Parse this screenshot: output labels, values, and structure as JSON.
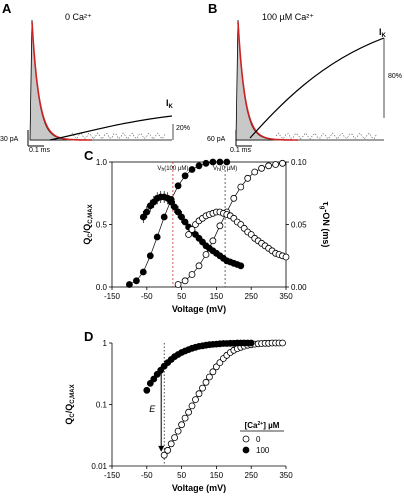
{
  "panels": {
    "A": {
      "letter": "A",
      "condition": "0 Ca²⁺",
      "ik": "I",
      "ik_sub": "K",
      "scale_current": "30 pA",
      "scale_time": "0.1 ms",
      "scale_pct": "20%",
      "tail_end_fraction": 0.2
    },
    "B": {
      "letter": "B",
      "condition": "100 µM Ca²⁺",
      "ik": "I",
      "ik_sub": "K",
      "scale_current": "60 pA",
      "scale_time": "0.1 ms",
      "scale_pct": "80%",
      "tail_end_fraction": 0.8
    },
    "C": {
      "letter": "C"
    },
    "D": {
      "letter": "D"
    }
  },
  "chart_data": [
    {
      "id": "C",
      "type": "scatter",
      "xlabel": "Voltage (mV)",
      "ylabel": "Q",
      "ylabel_sub": "C",
      "ylabel_mid": "/Q",
      "ylabel_sub2": "C,MAX",
      "y2label": "τ",
      "y2label_sub": "g",
      "y2label_rest": "ON",
      "y2label_unit": "(ms)",
      "xlim": [
        -150,
        350
      ],
      "ylim": [
        0,
        1
      ],
      "y2lim": [
        0,
        0.1
      ],
      "x_ticks": [
        -150,
        -50,
        50,
        150,
        250,
        350
      ],
      "y_ticks": [
        "0.0",
        "0.5",
        "1.0"
      ],
      "y_tick_values": [
        0,
        0.5,
        1
      ],
      "y2_ticks": [
        "0.00",
        "0.05",
        "0.10"
      ],
      "y2_tick_values": [
        0,
        0.05,
        0.1
      ],
      "annotations": [
        {
          "text": "V",
          "sub": "h",
          "rest": "(100 µM)",
          "x": 25,
          "color": "#d62728"
        },
        {
          "text": "V",
          "sub": "h",
          "rest": "(0 µM)",
          "x": 175,
          "color": "#444444"
        }
      ],
      "series": [
        {
          "group": "Q100",
          "marker": "filled",
          "x": [
            -100,
            -80,
            -60,
            -40,
            -20,
            0,
            20,
            40,
            60,
            80,
            100,
            120,
            140,
            160,
            180
          ],
          "y": [
            0.02,
            0.05,
            0.12,
            0.25,
            0.4,
            0.56,
            0.7,
            0.81,
            0.89,
            0.94,
            0.97,
            0.99,
            1.0,
            1.0,
            1.0
          ]
        },
        {
          "group": "Q0",
          "marker": "open",
          "x": [
            40,
            60,
            80,
            100,
            120,
            140,
            160,
            180,
            200,
            220,
            240,
            260,
            280,
            300,
            320,
            340
          ],
          "y": [
            0.02,
            0.05,
            0.1,
            0.17,
            0.26,
            0.37,
            0.49,
            0.6,
            0.71,
            0.8,
            0.87,
            0.92,
            0.95,
            0.97,
            0.98,
            0.99
          ]
        },
        {
          "group": "Tau100",
          "marker": "filled",
          "axis": "y2",
          "x": [
            -60,
            -50,
            -40,
            -30,
            -20,
            -10,
            0,
            10,
            20,
            30,
            40,
            50,
            60,
            70,
            80,
            90,
            100,
            110,
            120,
            130,
            140,
            150,
            160,
            170,
            180,
            190,
            200,
            210,
            220
          ],
          "y": [
            0.056,
            0.06,
            0.065,
            0.068,
            0.071,
            0.072,
            0.072,
            0.071,
            0.068,
            0.064,
            0.06,
            0.056,
            0.052,
            0.048,
            0.045,
            0.042,
            0.039,
            0.036,
            0.033,
            0.031,
            0.029,
            0.027,
            0.025,
            0.023,
            0.021,
            0.02,
            0.019,
            0.018,
            0.017
          ]
        },
        {
          "group": "Tau0",
          "marker": "open",
          "axis": "y2",
          "x": [
            70,
            80,
            90,
            100,
            110,
            120,
            130,
            140,
            150,
            160,
            170,
            180,
            190,
            200,
            210,
            220,
            230,
            240,
            250,
            260,
            270,
            280,
            290,
            300,
            310,
            320,
            330,
            340,
            350
          ],
          "y": [
            0.042,
            0.046,
            0.05,
            0.053,
            0.055,
            0.057,
            0.058,
            0.059,
            0.06,
            0.06,
            0.059,
            0.058,
            0.057,
            0.055,
            0.052,
            0.05,
            0.047,
            0.044,
            0.042,
            0.039,
            0.037,
            0.035,
            0.033,
            0.031,
            0.029,
            0.027,
            0.026,
            0.025,
            0.024
          ]
        }
      ]
    },
    {
      "id": "D",
      "type": "scatter",
      "log_y": true,
      "xlabel": "Voltage (mV)",
      "ylabel": "Q",
      "ylabel_sub": "C",
      "ylabel_mid": "/Q",
      "ylabel_sub2": "C,MAX",
      "xlim": [
        -150,
        350
      ],
      "ylim": [
        0.01,
        1
      ],
      "x_ticks": [
        -150,
        -50,
        50,
        150,
        250,
        350
      ],
      "y_ticks": [
        "0.01",
        "0.1",
        "1"
      ],
      "y_tick_values": [
        0.01,
        0.1,
        1
      ],
      "arrow_label": "E",
      "legend": {
        "title": "[Ca",
        "title_sup": "2+",
        "title_rest": "] µM",
        "entries": [
          {
            "marker": "open",
            "label": "0"
          },
          {
            "marker": "filled",
            "label": "100"
          }
        ],
        "position": "bottom-right"
      },
      "series": [
        {
          "group": "Q0",
          "marker": "open",
          "x": [
            0,
            10,
            20,
            30,
            40,
            50,
            60,
            70,
            80,
            90,
            100,
            110,
            120,
            130,
            140,
            150,
            160,
            170,
            180,
            190,
            200,
            210,
            220,
            230,
            240,
            250,
            260,
            270,
            280,
            290,
            300,
            310,
            320,
            330,
            340
          ],
          "y": [
            0.015,
            0.018,
            0.023,
            0.029,
            0.037,
            0.047,
            0.06,
            0.075,
            0.095,
            0.12,
            0.15,
            0.185,
            0.23,
            0.28,
            0.34,
            0.41,
            0.48,
            0.56,
            0.63,
            0.7,
            0.76,
            0.81,
            0.85,
            0.89,
            0.92,
            0.94,
            0.96,
            0.97,
            0.98,
            0.99,
            0.99,
            1.0,
            1.0,
            1.0,
            1.0
          ]
        },
        {
          "group": "Q100",
          "marker": "filled",
          "x": [
            -50,
            -40,
            -30,
            -20,
            -10,
            0,
            10,
            20,
            30,
            40,
            50,
            60,
            70,
            80,
            90,
            100,
            110,
            120,
            130,
            140,
            150,
            160,
            170,
            180,
            190,
            200,
            210,
            220,
            230,
            240,
            250
          ],
          "y": [
            0.17,
            0.22,
            0.26,
            0.31,
            0.36,
            0.42,
            0.48,
            0.54,
            0.6,
            0.65,
            0.7,
            0.74,
            0.78,
            0.82,
            0.85,
            0.88,
            0.9,
            0.92,
            0.94,
            0.95,
            0.96,
            0.97,
            0.98,
            0.98,
            0.99,
            0.99,
            1.0,
            1.0,
            1.0,
            1.0,
            1.0
          ]
        }
      ]
    }
  ]
}
